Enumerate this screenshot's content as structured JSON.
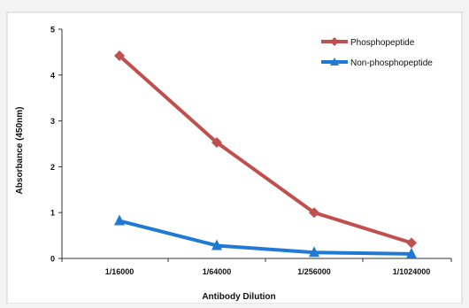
{
  "chart_data": {
    "type": "line",
    "title": "",
    "xlabel": "Antibody Dilution",
    "ylabel": "Absorbance (450nm)",
    "categories": [
      "1/16000",
      "1/64000",
      "1/256000",
      "1/1024000"
    ],
    "ylim": [
      0,
      5
    ],
    "yticks": [
      "0",
      "1",
      "2",
      "3",
      "4",
      "5"
    ],
    "grid": false,
    "legend_position": "top-right",
    "series": [
      {
        "name": "Phosphopeptide",
        "values": [
          4.42,
          2.53,
          1.0,
          0.34
        ],
        "color": "#c0504d",
        "marker": "diamond"
      },
      {
        "name": "Non-phosphopeptide",
        "values": [
          0.82,
          0.28,
          0.13,
          0.1
        ],
        "color": "#1f7ad6",
        "marker": "triangle"
      }
    ]
  }
}
